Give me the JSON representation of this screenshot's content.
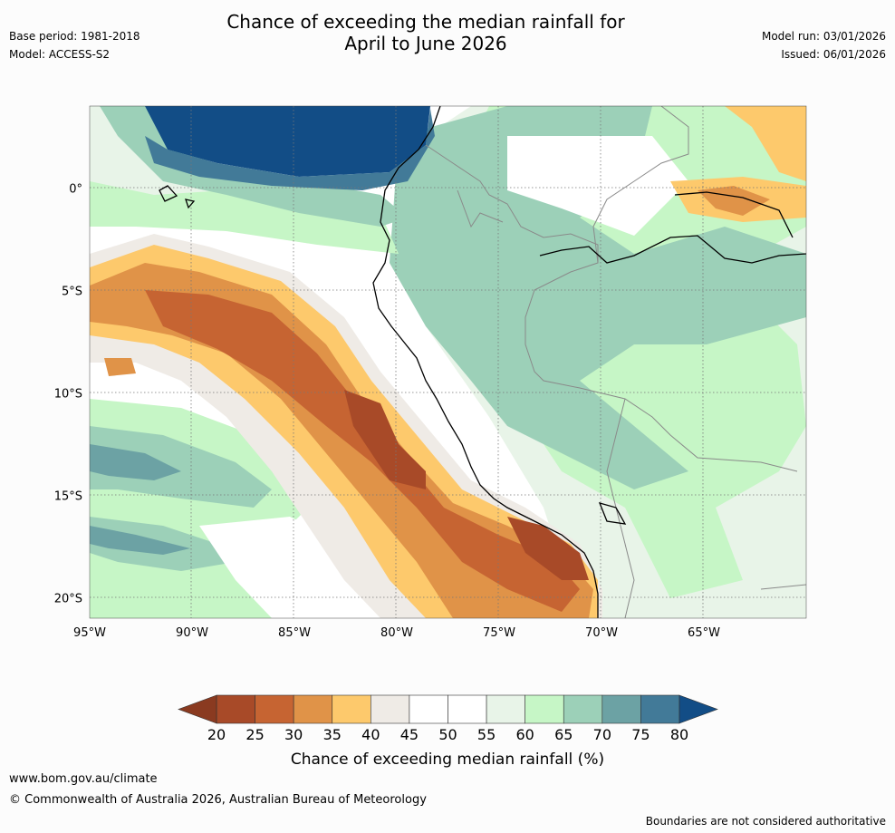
{
  "header": {
    "title_line1": "Chance of exceeding the median rainfall for",
    "title_line2": "April to June 2026",
    "base_period": "Base period: 1981-2018",
    "model": "Model: ACCESS-S2",
    "model_run": "Model run: 03/01/2026",
    "issued": "Issued: 06/01/2026"
  },
  "map": {
    "lon_labels": [
      "95°W",
      "90°W",
      "85°W",
      "80°W",
      "75°W",
      "70°W",
      "65°W"
    ],
    "lat_labels": [
      "0°",
      "5°S",
      "10°S",
      "15°S",
      "20°S"
    ],
    "lon_values": [
      -95,
      -90,
      -85,
      -80,
      -75,
      -70,
      -65
    ],
    "lat_values": [
      0,
      -5,
      -10,
      -15,
      -20
    ],
    "extent": {
      "lon_min": -95,
      "lon_max": -60,
      "lat_min": -21,
      "lat_max": 4
    }
  },
  "colorbar": {
    "ticks": [
      "20",
      "25",
      "30",
      "35",
      "40",
      "45",
      "50",
      "55",
      "60",
      "65",
      "70",
      "75",
      "80"
    ],
    "colors": [
      "#a84a28",
      "#c66432",
      "#e09348",
      "#fdc96c",
      "#efebe6",
      "#ffffff",
      "#ffffff",
      "#e8f4e8",
      "#c6f6c6",
      "#9cd0b8",
      "#6ca2a4",
      "#427a98"
    ],
    "low_color": "#8a3a20",
    "high_color": "#124d86",
    "label": "Chance of exceeding median rainfall (%)"
  },
  "footer": {
    "url": "www.bom.gov.au/climate",
    "copyright": "© Commonwealth of Australia 2026, Australian Bureau of Meteorology",
    "disclaimer": "Boundaries are not considered authoritative"
  }
}
